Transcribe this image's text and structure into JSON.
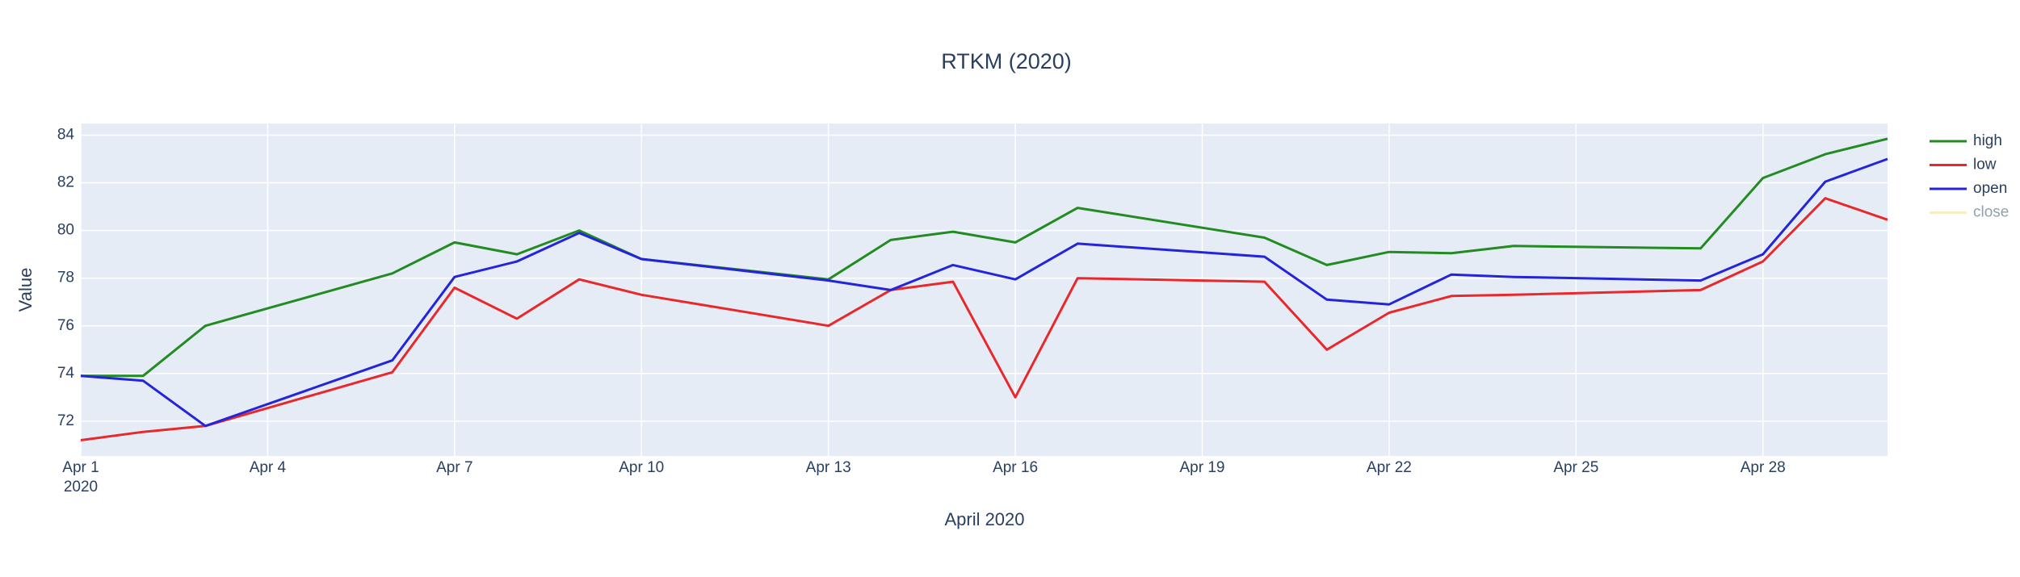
{
  "chart_data": {
    "type": "line",
    "title": "RTKM (2020)",
    "x_label": "April 2020",
    "y_label": "Value",
    "x": [
      "2020-04-01",
      "2020-04-02",
      "2020-04-03",
      "2020-04-06",
      "2020-04-07",
      "2020-04-08",
      "2020-04-09",
      "2020-04-10",
      "2020-04-13",
      "2020-04-14",
      "2020-04-15",
      "2020-04-16",
      "2020-04-17",
      "2020-04-20",
      "2020-04-21",
      "2020-04-22",
      "2020-04-23",
      "2020-04-24",
      "2020-04-27",
      "2020-04-28",
      "2020-04-29",
      "2020-04-30"
    ],
    "series": [
      {
        "name": "high",
        "color": "#228b22",
        "values": [
          73.9,
          73.9,
          76.0,
          78.2,
          79.5,
          79.0,
          80.0,
          78.8,
          77.95,
          79.6,
          79.95,
          79.5,
          80.95,
          79.7,
          78.55,
          79.1,
          79.05,
          79.35,
          79.25,
          82.2,
          83.2,
          83.85
        ]
      },
      {
        "name": "low",
        "color": "#e8282b",
        "values": [
          71.2,
          71.55,
          71.8,
          74.05,
          77.6,
          76.3,
          77.95,
          77.3,
          76.0,
          77.5,
          77.85,
          73.0,
          78.0,
          77.85,
          75.0,
          76.55,
          77.25,
          77.3,
          77.5,
          78.7,
          81.35,
          80.45
        ]
      },
      {
        "name": "open",
        "color": "#2424dc",
        "values": [
          73.9,
          73.7,
          71.8,
          74.55,
          78.05,
          78.7,
          79.9,
          78.8,
          77.9,
          77.5,
          78.55,
          77.95,
          79.45,
          78.9,
          77.1,
          76.9,
          78.15,
          78.05,
          77.9,
          79.0,
          82.05,
          83.0
        ]
      },
      {
        "name": "close",
        "color": "#f5d98b",
        "visible": "legendonly",
        "values": [
          null,
          null,
          null,
          null,
          null,
          null,
          null,
          null,
          null,
          null,
          null,
          null,
          null,
          null,
          null,
          null,
          null,
          null,
          null,
          null,
          null,
          null
        ]
      }
    ],
    "xlim": [
      "2020-04-01",
      "2020-04-30"
    ],
    "xticks": [
      {
        "value": "2020-04-01",
        "label": "Apr 1",
        "sublabel": "2020"
      },
      {
        "value": "2020-04-04",
        "label": "Apr 4"
      },
      {
        "value": "2020-04-07",
        "label": "Apr 7"
      },
      {
        "value": "2020-04-10",
        "label": "Apr 10"
      },
      {
        "value": "2020-04-13",
        "label": "Apr 13"
      },
      {
        "value": "2020-04-16",
        "label": "Apr 16"
      },
      {
        "value": "2020-04-19",
        "label": "Apr 19"
      },
      {
        "value": "2020-04-22",
        "label": "Apr 22"
      },
      {
        "value": "2020-04-25",
        "label": "Apr 25"
      },
      {
        "value": "2020-04-28",
        "label": "Apr 28"
      }
    ],
    "ylim": [
      70.54,
      84.49
    ],
    "yticks": [
      72,
      74,
      76,
      78,
      80,
      82,
      84
    ],
    "grid": true,
    "legend": "right"
  }
}
